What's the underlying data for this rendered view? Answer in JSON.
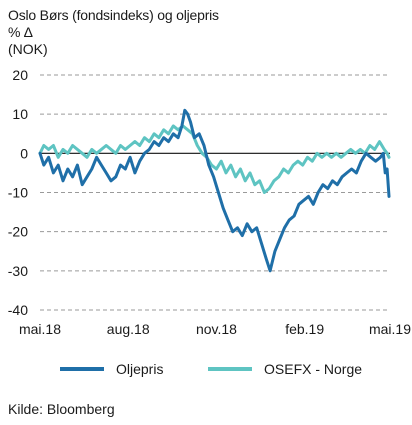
{
  "chart_data": {
    "type": "line",
    "title": "Oslo Børs (fondsindeks) og oljepris",
    "ylabel_lines": [
      "% Δ",
      "(NOK)"
    ],
    "ylim": [
      -40,
      20
    ],
    "yticks": [
      20,
      10,
      0,
      -10,
      -20,
      -30,
      -40
    ],
    "xlim": [
      "2018-05-01",
      "2019-05-01"
    ],
    "xticks": [
      {
        "date": "2018-05-01",
        "label": "mai.18"
      },
      {
        "date": "2018-08-01",
        "label": "aug.18"
      },
      {
        "date": "2018-11-01",
        "label": "nov.18"
      },
      {
        "date": "2019-02-01",
        "label": "feb.19"
      },
      {
        "date": "2019-05-01",
        "label": "mai.19"
      }
    ],
    "grid": "horizontal dashed",
    "legend_position": "bottom",
    "series": [
      {
        "name": "Oljepris",
        "color": "#1f6fa8",
        "points": [
          [
            "2018-05-01",
            0
          ],
          [
            "2018-05-05",
            -3
          ],
          [
            "2018-05-10",
            -1
          ],
          [
            "2018-05-15",
            -5
          ],
          [
            "2018-05-20",
            -3
          ],
          [
            "2018-05-25",
            -7
          ],
          [
            "2018-05-30",
            -4
          ],
          [
            "2018-06-04",
            -6
          ],
          [
            "2018-06-09",
            -3
          ],
          [
            "2018-06-14",
            -8
          ],
          [
            "2018-06-19",
            -6
          ],
          [
            "2018-06-24",
            -4
          ],
          [
            "2018-06-29",
            -1
          ],
          [
            "2018-07-04",
            -3
          ],
          [
            "2018-07-09",
            -5
          ],
          [
            "2018-07-14",
            -7
          ],
          [
            "2018-07-19",
            -6
          ],
          [
            "2018-07-24",
            -3
          ],
          [
            "2018-07-29",
            -4
          ],
          [
            "2018-08-03",
            -1
          ],
          [
            "2018-08-08",
            -5
          ],
          [
            "2018-08-13",
            -2
          ],
          [
            "2018-08-18",
            0
          ],
          [
            "2018-08-23",
            1
          ],
          [
            "2018-08-28",
            3
          ],
          [
            "2018-09-02",
            2
          ],
          [
            "2018-09-07",
            4
          ],
          [
            "2018-09-12",
            3
          ],
          [
            "2018-09-17",
            5
          ],
          [
            "2018-09-22",
            4
          ],
          [
            "2018-09-26",
            7
          ],
          [
            "2018-09-29",
            11
          ],
          [
            "2018-10-02",
            10
          ],
          [
            "2018-10-05",
            8
          ],
          [
            "2018-10-09",
            4
          ],
          [
            "2018-10-14",
            5
          ],
          [
            "2018-10-19",
            2
          ],
          [
            "2018-10-24",
            -3
          ],
          [
            "2018-10-29",
            -6
          ],
          [
            "2018-11-03",
            -10
          ],
          [
            "2018-11-08",
            -14
          ],
          [
            "2018-11-13",
            -17
          ],
          [
            "2018-11-18",
            -20
          ],
          [
            "2018-11-23",
            -19
          ],
          [
            "2018-11-28",
            -21
          ],
          [
            "2018-12-03",
            -18
          ],
          [
            "2018-12-08",
            -20
          ],
          [
            "2018-12-13",
            -19
          ],
          [
            "2018-12-18",
            -23
          ],
          [
            "2018-12-23",
            -27
          ],
          [
            "2018-12-27",
            -30
          ],
          [
            "2019-01-01",
            -25
          ],
          [
            "2019-01-06",
            -22
          ],
          [
            "2019-01-11",
            -19
          ],
          [
            "2019-01-16",
            -17
          ],
          [
            "2019-01-21",
            -16
          ],
          [
            "2019-01-26",
            -13
          ],
          [
            "2019-01-31",
            -12
          ],
          [
            "2019-02-05",
            -11
          ],
          [
            "2019-02-10",
            -13
          ],
          [
            "2019-02-15",
            -10
          ],
          [
            "2019-02-20",
            -8
          ],
          [
            "2019-02-25",
            -9
          ],
          [
            "2019-03-02",
            -7
          ],
          [
            "2019-03-07",
            -8
          ],
          [
            "2019-03-12",
            -6
          ],
          [
            "2019-03-17",
            -5
          ],
          [
            "2019-03-22",
            -4
          ],
          [
            "2019-03-27",
            -5
          ],
          [
            "2019-04-01",
            -2
          ],
          [
            "2019-04-06",
            0
          ],
          [
            "2019-04-11",
            -1
          ],
          [
            "2019-04-16",
            -2
          ],
          [
            "2019-04-21",
            -1
          ],
          [
            "2019-04-24",
            0
          ],
          [
            "2019-04-26",
            -5
          ],
          [
            "2019-04-28",
            -4
          ],
          [
            "2019-04-30",
            -11
          ]
        ]
      },
      {
        "name": "OSEFX - Norge",
        "color": "#5ec4c2",
        "points": [
          [
            "2018-05-01",
            0
          ],
          [
            "2018-05-05",
            2
          ],
          [
            "2018-05-10",
            1
          ],
          [
            "2018-05-15",
            2
          ],
          [
            "2018-05-20",
            -1
          ],
          [
            "2018-05-25",
            1
          ],
          [
            "2018-05-30",
            0
          ],
          [
            "2018-06-04",
            2
          ],
          [
            "2018-06-09",
            1
          ],
          [
            "2018-06-14",
            0
          ],
          [
            "2018-06-19",
            -1
          ],
          [
            "2018-06-24",
            1
          ],
          [
            "2018-06-29",
            0
          ],
          [
            "2018-07-04",
            1
          ],
          [
            "2018-07-09",
            2
          ],
          [
            "2018-07-14",
            1
          ],
          [
            "2018-07-19",
            0
          ],
          [
            "2018-07-24",
            2
          ],
          [
            "2018-07-29",
            1
          ],
          [
            "2018-08-03",
            2
          ],
          [
            "2018-08-08",
            3
          ],
          [
            "2018-08-13",
            2
          ],
          [
            "2018-08-18",
            4
          ],
          [
            "2018-08-23",
            3
          ],
          [
            "2018-08-28",
            5
          ],
          [
            "2018-09-02",
            4
          ],
          [
            "2018-09-07",
            6
          ],
          [
            "2018-09-12",
            5
          ],
          [
            "2018-09-17",
            7
          ],
          [
            "2018-09-22",
            6
          ],
          [
            "2018-09-27",
            7
          ],
          [
            "2018-10-02",
            6
          ],
          [
            "2018-10-07",
            5
          ],
          [
            "2018-10-12",
            2
          ],
          [
            "2018-10-17",
            0
          ],
          [
            "2018-10-22",
            -1
          ],
          [
            "2018-10-27",
            -3
          ],
          [
            "2018-11-01",
            -4
          ],
          [
            "2018-11-06",
            -2
          ],
          [
            "2018-11-11",
            -5
          ],
          [
            "2018-11-16",
            -3
          ],
          [
            "2018-11-21",
            -6
          ],
          [
            "2018-11-26",
            -4
          ],
          [
            "2018-12-01",
            -7
          ],
          [
            "2018-12-06",
            -5
          ],
          [
            "2018-12-11",
            -8
          ],
          [
            "2018-12-16",
            -7
          ],
          [
            "2018-12-21",
            -10
          ],
          [
            "2018-12-26",
            -9
          ],
          [
            "2018-12-31",
            -7
          ],
          [
            "2019-01-05",
            -6
          ],
          [
            "2019-01-10",
            -4
          ],
          [
            "2019-01-15",
            -5
          ],
          [
            "2019-01-20",
            -3
          ],
          [
            "2019-01-25",
            -2
          ],
          [
            "2019-01-30",
            -3
          ],
          [
            "2019-02-04",
            -1
          ],
          [
            "2019-02-09",
            -2
          ],
          [
            "2019-02-14",
            0
          ],
          [
            "2019-02-19",
            -1
          ],
          [
            "2019-02-24",
            0
          ],
          [
            "2019-03-01",
            -1
          ],
          [
            "2019-03-06",
            0
          ],
          [
            "2019-03-11",
            -1
          ],
          [
            "2019-03-16",
            0
          ],
          [
            "2019-03-21",
            1
          ],
          [
            "2019-03-26",
            0
          ],
          [
            "2019-03-31",
            1
          ],
          [
            "2019-04-05",
            0
          ],
          [
            "2019-04-10",
            2
          ],
          [
            "2019-04-15",
            1
          ],
          [
            "2019-04-20",
            3
          ],
          [
            "2019-04-25",
            1
          ],
          [
            "2019-04-28",
            0
          ],
          [
            "2019-04-30",
            -1
          ]
        ]
      }
    ]
  },
  "footer": {
    "source": "Kilde: Bloomberg"
  }
}
